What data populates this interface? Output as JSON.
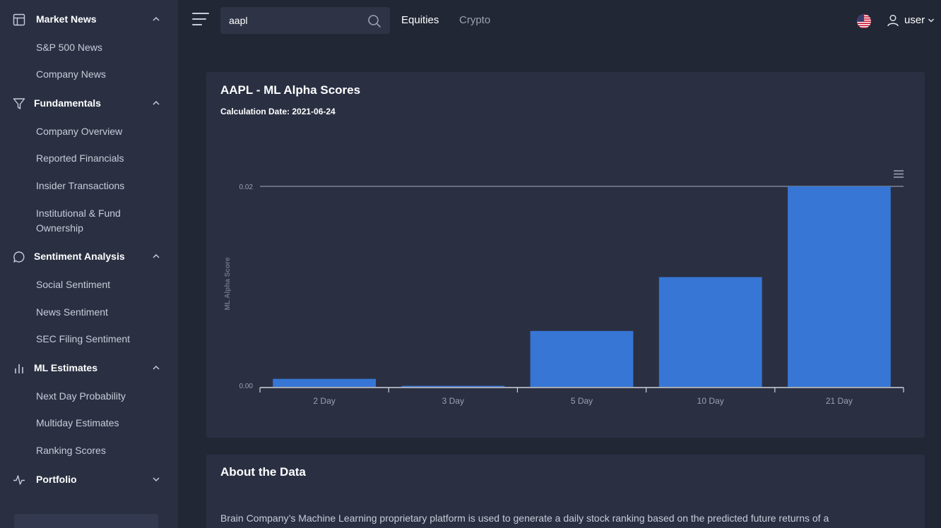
{
  "sidebar": {
    "sections": [
      {
        "label": "Market News",
        "icon": "table-icon",
        "expanded": true,
        "items": [
          "S&P 500 News",
          "Company News"
        ]
      },
      {
        "label": "Fundamentals",
        "icon": "filter-icon",
        "expanded": true,
        "items": [
          "Company Overview",
          "Reported Financials",
          "Insider Transactions",
          "Institutional & Fund Ownership"
        ]
      },
      {
        "label": "Sentiment Analysis",
        "icon": "chat-bubble-icon",
        "expanded": true,
        "items": [
          "Social Sentiment",
          "News Sentiment",
          "SEC Filing Sentiment"
        ]
      },
      {
        "label": "ML Estimates",
        "icon": "bar-chart-icon",
        "expanded": true,
        "items": [
          "Next Day Probability",
          "Multiday Estimates",
          "Ranking Scores"
        ]
      },
      {
        "label": "Portfolio",
        "icon": "activity-icon",
        "expanded": false,
        "items": []
      }
    ]
  },
  "topbar": {
    "search_value": "aapl",
    "links": [
      "Equities",
      "Crypto"
    ],
    "user_label": "user"
  },
  "main": {
    "chart_card": {
      "title": "AAPL - ML Alpha Scores",
      "calculation_date": "Calculation Date: 2021-06-24"
    },
    "about_card": {
      "title": "About the Data",
      "text": "Brain Company’s Machine Learning proprietary platform is used to generate a daily stock ranking based on the predicted future returns of a"
    }
  },
  "colors": {
    "bar": "#3776d5",
    "accent_text": "#ffffff",
    "axis_line": "#cfd3db"
  },
  "chart_data": {
    "type": "bar",
    "categories": [
      "2 Day",
      "3 Day",
      "5 Day",
      "10 Day",
      "21 Day"
    ],
    "values": [
      0.0008,
      0.0001,
      0.0056,
      0.011,
      0.0201
    ],
    "ylabel": "ML Alpha Score",
    "yticks": [
      "0.00",
      "0.02"
    ],
    "ylim": [
      0,
      0.0201
    ],
    "grid": true
  }
}
